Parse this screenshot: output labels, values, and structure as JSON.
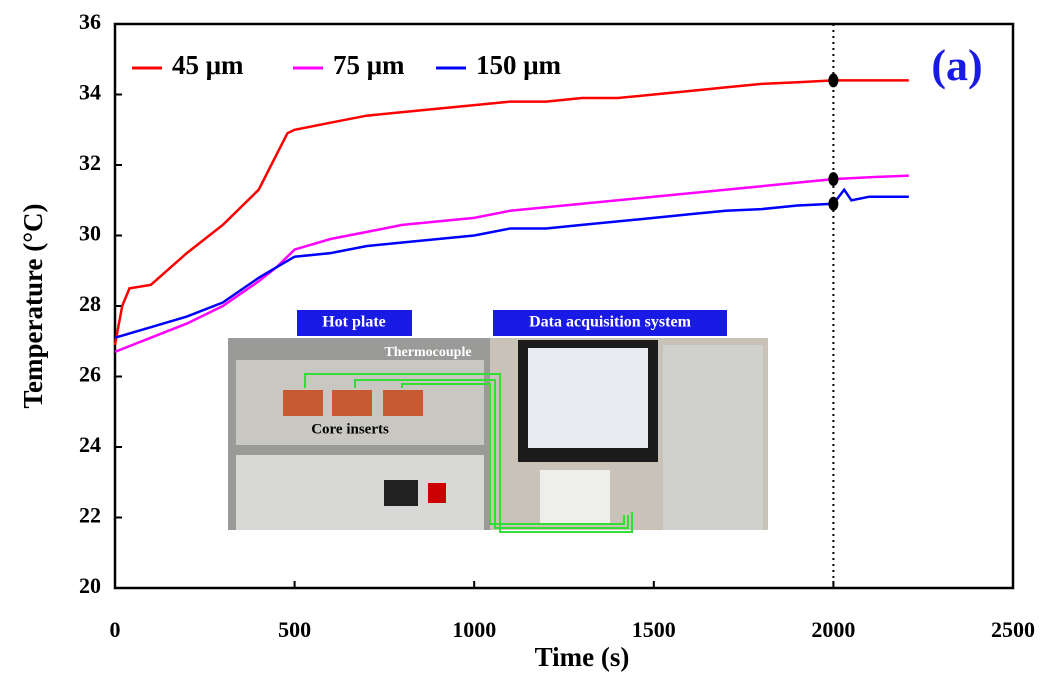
{
  "chart_data": {
    "type": "line",
    "annotation": "(a)",
    "x_label": "Time (s)",
    "y_label": "Temperature (°C)",
    "xlim": [
      0,
      2500
    ],
    "xticks": [
      0,
      500,
      1000,
      1500,
      2000,
      2500
    ],
    "ylim": [
      20,
      36
    ],
    "yticks": [
      20,
      22,
      24,
      26,
      28,
      30,
      32,
      34,
      36
    ],
    "vline_x": 2000,
    "inset_labels": [
      "Hot plate",
      "Data acquisition system",
      "Thermocouple",
      "Core inserts"
    ],
    "series": [
      {
        "name": "45 μm",
        "color": "#ff0000",
        "x": [
          0,
          20,
          40,
          100,
          200,
          300,
          400,
          450,
          480,
          500,
          600,
          700,
          800,
          900,
          1000,
          1100,
          1200,
          1300,
          1400,
          1500,
          1600,
          1700,
          1800,
          1900,
          2000,
          2100,
          2210
        ],
        "values": [
          26.9,
          28.0,
          28.5,
          28.6,
          29.5,
          30.3,
          31.3,
          32.3,
          32.9,
          33.0,
          33.2,
          33.4,
          33.5,
          33.6,
          33.7,
          33.8,
          33.8,
          33.9,
          33.9,
          34.0,
          34.1,
          34.2,
          34.3,
          34.35,
          34.4,
          34.4,
          34.4
        ]
      },
      {
        "name": "75 μm",
        "color": "#ff00ff",
        "x": [
          0,
          100,
          200,
          300,
          400,
          450,
          500,
          600,
          700,
          800,
          900,
          1000,
          1100,
          1200,
          1300,
          1400,
          1500,
          1600,
          1700,
          1800,
          1900,
          2000,
          2100,
          2210
        ],
        "values": [
          26.7,
          27.1,
          27.5,
          28.0,
          28.7,
          29.1,
          29.6,
          29.9,
          30.1,
          30.3,
          30.4,
          30.5,
          30.7,
          30.8,
          30.9,
          31.0,
          31.1,
          31.2,
          31.3,
          31.4,
          31.5,
          31.6,
          31.65,
          31.7
        ]
      },
      {
        "name": "150 μm",
        "color": "#0000ff",
        "x": [
          0,
          100,
          200,
          300,
          400,
          450,
          500,
          600,
          700,
          800,
          900,
          1000,
          1100,
          1200,
          1300,
          1400,
          1500,
          1600,
          1700,
          1800,
          1900,
          2000,
          2030,
          2050,
          2100,
          2210
        ],
        "values": [
          27.1,
          27.4,
          27.7,
          28.1,
          28.8,
          29.1,
          29.4,
          29.5,
          29.7,
          29.8,
          29.9,
          30.0,
          30.2,
          30.2,
          30.3,
          30.4,
          30.5,
          30.6,
          30.7,
          30.75,
          30.85,
          30.9,
          31.3,
          31.0,
          31.1,
          31.1
        ]
      }
    ]
  }
}
